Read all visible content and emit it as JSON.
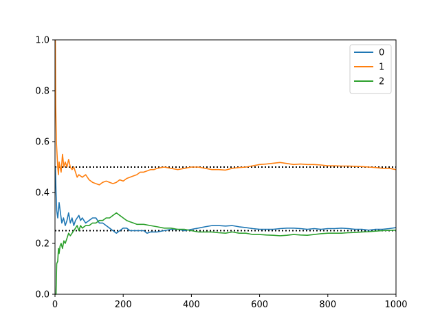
{
  "chart_data": {
    "type": "line",
    "xlim": [
      0,
      1000
    ],
    "ylim": [
      0,
      1
    ],
    "xticks": [
      "0",
      "200",
      "400",
      "600",
      "800",
      "1000"
    ],
    "yticks": [
      "0.0",
      "0.2",
      "0.4",
      "0.6",
      "0.8",
      "1.0"
    ],
    "grid": false,
    "legend_position": "top-right",
    "reference_lines": [
      {
        "y": 0.5,
        "style": "dotted",
        "color": "#000000"
      },
      {
        "y": 0.25,
        "style": "dotted",
        "color": "#000000"
      }
    ],
    "series": [
      {
        "name": "0",
        "color": "#1f77b4",
        "points": [
          [
            1,
            0.5
          ],
          [
            3,
            0.4
          ],
          [
            5,
            0.33
          ],
          [
            8,
            0.3
          ],
          [
            12,
            0.36
          ],
          [
            16,
            0.32
          ],
          [
            20,
            0.28
          ],
          [
            25,
            0.3
          ],
          [
            30,
            0.27
          ],
          [
            35,
            0.29
          ],
          [
            40,
            0.32
          ],
          [
            45,
            0.28
          ],
          [
            50,
            0.3
          ],
          [
            55,
            0.27
          ],
          [
            60,
            0.29
          ],
          [
            65,
            0.3
          ],
          [
            70,
            0.31
          ],
          [
            75,
            0.29
          ],
          [
            80,
            0.3
          ],
          [
            90,
            0.28
          ],
          [
            100,
            0.29
          ],
          [
            110,
            0.3
          ],
          [
            120,
            0.3
          ],
          [
            130,
            0.28
          ],
          [
            140,
            0.28
          ],
          [
            150,
            0.27
          ],
          [
            160,
            0.26
          ],
          [
            170,
            0.25
          ],
          [
            180,
            0.24
          ],
          [
            190,
            0.25
          ],
          [
            200,
            0.26
          ],
          [
            210,
            0.26
          ],
          [
            220,
            0.25
          ],
          [
            230,
            0.25
          ],
          [
            240,
            0.25
          ],
          [
            250,
            0.25
          ],
          [
            260,
            0.25
          ],
          [
            270,
            0.24
          ],
          [
            280,
            0.245
          ],
          [
            300,
            0.245
          ],
          [
            320,
            0.25
          ],
          [
            340,
            0.255
          ],
          [
            360,
            0.255
          ],
          [
            380,
            0.25
          ],
          [
            400,
            0.255
          ],
          [
            420,
            0.26
          ],
          [
            440,
            0.265
          ],
          [
            460,
            0.27
          ],
          [
            480,
            0.27
          ],
          [
            500,
            0.268
          ],
          [
            520,
            0.27
          ],
          [
            540,
            0.265
          ],
          [
            560,
            0.262
          ],
          [
            580,
            0.258
          ],
          [
            600,
            0.255
          ],
          [
            620,
            0.255
          ],
          [
            640,
            0.255
          ],
          [
            660,
            0.258
          ],
          [
            680,
            0.26
          ],
          [
            700,
            0.26
          ],
          [
            720,
            0.258
          ],
          [
            740,
            0.255
          ],
          [
            760,
            0.258
          ],
          [
            780,
            0.255
          ],
          [
            800,
            0.258
          ],
          [
            820,
            0.258
          ],
          [
            840,
            0.26
          ],
          [
            860,
            0.258
          ],
          [
            880,
            0.255
          ],
          [
            900,
            0.255
          ],
          [
            920,
            0.252
          ],
          [
            940,
            0.255
          ],
          [
            960,
            0.255
          ],
          [
            980,
            0.258
          ],
          [
            1000,
            0.262
          ]
        ]
      },
      {
        "name": "1",
        "color": "#ff7f0e",
        "points": [
          [
            1,
            1.0
          ],
          [
            2,
            0.75
          ],
          [
            4,
            0.6
          ],
          [
            6,
            0.55
          ],
          [
            8,
            0.5
          ],
          [
            10,
            0.47
          ],
          [
            12,
            0.52
          ],
          [
            15,
            0.5
          ],
          [
            18,
            0.48
          ],
          [
            22,
            0.55
          ],
          [
            26,
            0.5
          ],
          [
            30,
            0.52
          ],
          [
            35,
            0.5
          ],
          [
            40,
            0.53
          ],
          [
            45,
            0.5
          ],
          [
            50,
            0.49
          ],
          [
            55,
            0.5
          ],
          [
            60,
            0.48
          ],
          [
            65,
            0.46
          ],
          [
            70,
            0.47
          ],
          [
            80,
            0.46
          ],
          [
            90,
            0.47
          ],
          [
            100,
            0.45
          ],
          [
            110,
            0.44
          ],
          [
            120,
            0.435
          ],
          [
            130,
            0.43
          ],
          [
            140,
            0.44
          ],
          [
            150,
            0.445
          ],
          [
            160,
            0.44
          ],
          [
            170,
            0.435
          ],
          [
            180,
            0.44
          ],
          [
            190,
            0.45
          ],
          [
            200,
            0.445
          ],
          [
            210,
            0.455
          ],
          [
            220,
            0.46
          ],
          [
            230,
            0.465
          ],
          [
            240,
            0.47
          ],
          [
            250,
            0.48
          ],
          [
            260,
            0.48
          ],
          [
            270,
            0.485
          ],
          [
            280,
            0.49
          ],
          [
            290,
            0.49
          ],
          [
            300,
            0.495
          ],
          [
            320,
            0.5
          ],
          [
            340,
            0.495
          ],
          [
            360,
            0.49
          ],
          [
            380,
            0.495
          ],
          [
            400,
            0.5
          ],
          [
            420,
            0.5
          ],
          [
            440,
            0.495
          ],
          [
            460,
            0.49
          ],
          [
            480,
            0.49
          ],
          [
            500,
            0.488
          ],
          [
            520,
            0.495
          ],
          [
            540,
            0.498
          ],
          [
            560,
            0.5
          ],
          [
            580,
            0.505
          ],
          [
            600,
            0.51
          ],
          [
            620,
            0.512
          ],
          [
            640,
            0.515
          ],
          [
            660,
            0.518
          ],
          [
            680,
            0.514
          ],
          [
            700,
            0.51
          ],
          [
            720,
            0.512
          ],
          [
            740,
            0.51
          ],
          [
            760,
            0.51
          ],
          [
            780,
            0.508
          ],
          [
            800,
            0.505
          ],
          [
            820,
            0.505
          ],
          [
            840,
            0.504
          ],
          [
            860,
            0.504
          ],
          [
            880,
            0.503
          ],
          [
            900,
            0.502
          ],
          [
            920,
            0.5
          ],
          [
            940,
            0.498
          ],
          [
            960,
            0.495
          ],
          [
            980,
            0.495
          ],
          [
            1000,
            0.49
          ]
        ]
      },
      {
        "name": "2",
        "color": "#2ca02c",
        "points": [
          [
            1,
            0.0
          ],
          [
            3,
            0.0
          ],
          [
            5,
            0.12
          ],
          [
            8,
            0.13
          ],
          [
            10,
            0.18
          ],
          [
            12,
            0.16
          ],
          [
            15,
            0.19
          ],
          [
            18,
            0.2
          ],
          [
            22,
            0.18
          ],
          [
            26,
            0.21
          ],
          [
            30,
            0.2
          ],
          [
            35,
            0.22
          ],
          [
            40,
            0.24
          ],
          [
            45,
            0.23
          ],
          [
            50,
            0.24
          ],
          [
            55,
            0.25
          ],
          [
            60,
            0.26
          ],
          [
            65,
            0.27
          ],
          [
            70,
            0.25
          ],
          [
            75,
            0.27
          ],
          [
            80,
            0.26
          ],
          [
            90,
            0.27
          ],
          [
            100,
            0.27
          ],
          [
            110,
            0.28
          ],
          [
            120,
            0.28
          ],
          [
            130,
            0.29
          ],
          [
            140,
            0.29
          ],
          [
            150,
            0.3
          ],
          [
            160,
            0.3
          ],
          [
            170,
            0.31
          ],
          [
            180,
            0.32
          ],
          [
            190,
            0.31
          ],
          [
            200,
            0.3
          ],
          [
            210,
            0.29
          ],
          [
            220,
            0.285
          ],
          [
            230,
            0.28
          ],
          [
            240,
            0.275
          ],
          [
            260,
            0.275
          ],
          [
            280,
            0.27
          ],
          [
            300,
            0.265
          ],
          [
            320,
            0.26
          ],
          [
            340,
            0.26
          ],
          [
            360,
            0.255
          ],
          [
            380,
            0.255
          ],
          [
            400,
            0.25
          ],
          [
            420,
            0.245
          ],
          [
            440,
            0.245
          ],
          [
            460,
            0.245
          ],
          [
            480,
            0.242
          ],
          [
            500,
            0.24
          ],
          [
            520,
            0.245
          ],
          [
            540,
            0.24
          ],
          [
            560,
            0.24
          ],
          [
            580,
            0.235
          ],
          [
            600,
            0.235
          ],
          [
            620,
            0.233
          ],
          [
            640,
            0.232
          ],
          [
            660,
            0.23
          ],
          [
            680,
            0.232
          ],
          [
            700,
            0.235
          ],
          [
            720,
            0.233
          ],
          [
            740,
            0.232
          ],
          [
            760,
            0.235
          ],
          [
            780,
            0.238
          ],
          [
            800,
            0.24
          ],
          [
            820,
            0.24
          ],
          [
            840,
            0.24
          ],
          [
            860,
            0.242
          ],
          [
            880,
            0.243
          ],
          [
            900,
            0.245
          ],
          [
            920,
            0.246
          ],
          [
            940,
            0.248
          ],
          [
            960,
            0.25
          ],
          [
            980,
            0.251
          ],
          [
            1000,
            0.252
          ]
        ]
      }
    ]
  }
}
